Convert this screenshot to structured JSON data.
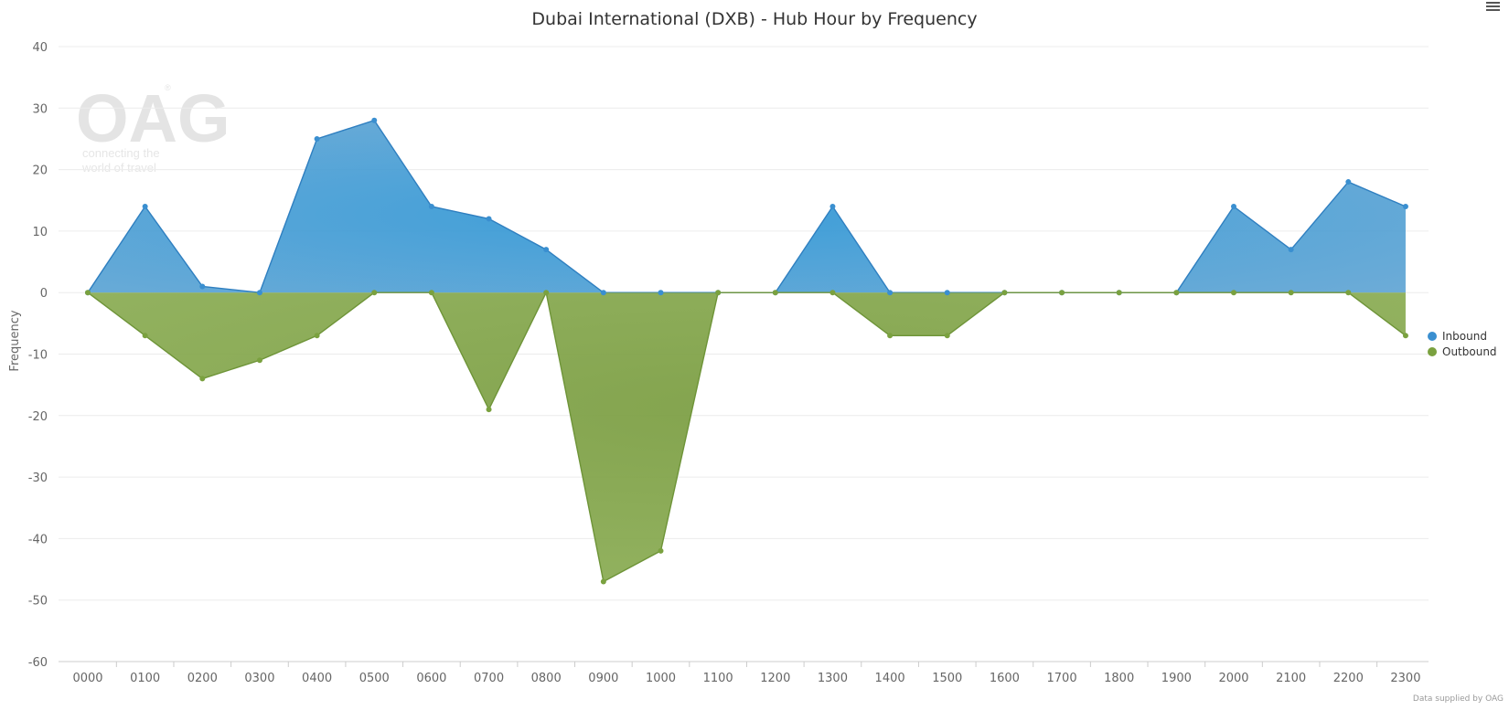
{
  "chart_data": {
    "type": "area",
    "title": "Dubai International (DXB) - Hub Hour by Frequency",
    "ylabel": "Frequency",
    "xlabel": "",
    "ylim": [
      -60,
      40
    ],
    "yticks": [
      40,
      30,
      20,
      10,
      0,
      -10,
      -20,
      -30,
      -40,
      -50,
      -60
    ],
    "grid": true,
    "legend_position": "right",
    "categories": [
      "0000",
      "0100",
      "0200",
      "0300",
      "0400",
      "0500",
      "0600",
      "0700",
      "0800",
      "0900",
      "1000",
      "1100",
      "1200",
      "1300",
      "1400",
      "1500",
      "1600",
      "1700",
      "1800",
      "1900",
      "2000",
      "2100",
      "2200",
      "2300"
    ],
    "series": [
      {
        "name": "Inbound",
        "color": "#3a8fd0",
        "values": [
          0,
          14,
          1,
          0,
          25,
          28,
          14,
          12,
          7,
          0,
          0,
          0,
          0,
          14,
          0,
          0,
          0,
          0,
          0,
          0,
          14,
          7,
          18,
          14
        ]
      },
      {
        "name": "Outbound",
        "color": "#7aa13f",
        "values": [
          0,
          -7,
          -14,
          -11,
          -7,
          0,
          0,
          -19,
          0,
          -47,
          -42,
          0,
          0,
          0,
          -7,
          -7,
          0,
          0,
          0,
          0,
          0,
          0,
          0,
          -7
        ]
      }
    ]
  },
  "watermark": {
    "logo": "OAG",
    "tagline_line1": "connecting the",
    "tagline_line2": "world of travel"
  },
  "credit": "Data supplied by OAG",
  "menu": {
    "icon": "hamburger-menu-icon"
  }
}
